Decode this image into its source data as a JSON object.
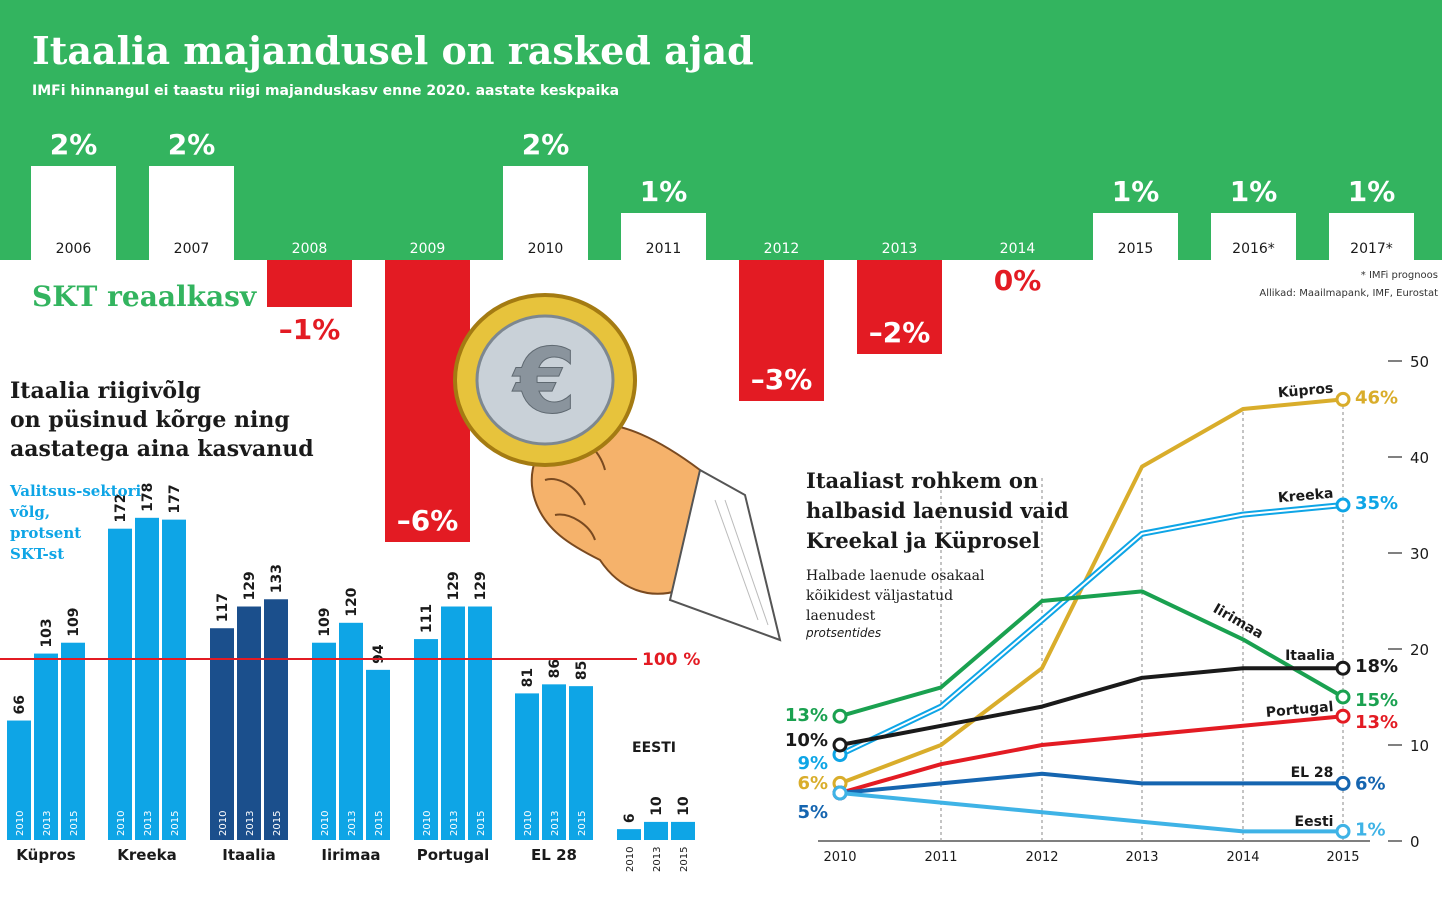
{
  "header": {
    "title": "Itaalia majandusel on rasked ajad",
    "subtitle": "IMFi hinnangul ei taastu riigi majanduskasv enne 2020. aastate keskpaika"
  },
  "colors": {
    "green": "#33b45f",
    "red": "#e31b23",
    "lightblue": "#0ea5e6",
    "darkblue": "#1b4f8c",
    "gold": "#d9ad2b",
    "black": "#1a1a1a",
    "portugal": "#e31b23",
    "eu": "#1565b0",
    "eesti": "#3fb3e6",
    "irl": "#1aa150"
  },
  "chart_data": [
    {
      "type": "bar",
      "title": "SKT reaalkasv",
      "categories": [
        "2006",
        "2007",
        "2008",
        "2009",
        "2010",
        "2011",
        "2012",
        "2013",
        "2014",
        "2015",
        "2016*",
        "2017*"
      ],
      "values": [
        2,
        2,
        -1,
        -6,
        2,
        1,
        -3,
        -2,
        0,
        1,
        1,
        1
      ],
      "labels": [
        "2%",
        "2%",
        "-1%",
        "-6%",
        "2%",
        "1%",
        "-3%",
        "-2%",
        "0%",
        "1%",
        "1%",
        "1%"
      ],
      "footnote": "* IMFi prognoos",
      "source": "Allikad: Maailmapank, IMF, Eurostat"
    },
    {
      "type": "bar",
      "title": "Itaalia riigivõlg on püsinud kõrge ning aastatega aina kasvanud",
      "ylabel": "Valitsus-sektori võlg, protsent SKT-st",
      "reference_line": {
        "value": 100,
        "label": "100 %"
      },
      "years": [
        "2010",
        "2013",
        "2015"
      ],
      "series": [
        {
          "name": "Küpros",
          "values": [
            66,
            103,
            109
          ]
        },
        {
          "name": "Kreeka",
          "values": [
            172,
            178,
            177
          ]
        },
        {
          "name": "Itaalia",
          "values": [
            117,
            129,
            133
          ]
        },
        {
          "name": "Iirimaa",
          "values": [
            109,
            120,
            94
          ]
        },
        {
          "name": "Portugal",
          "values": [
            111,
            129,
            129
          ]
        },
        {
          "name": "EL 28",
          "values": [
            81,
            86,
            85
          ]
        },
        {
          "name": "EESTI",
          "values": [
            6,
            10,
            10
          ]
        }
      ]
    },
    {
      "type": "line",
      "title": "Itaaliast rohkem on halbasid laenusid vaid Kreekal ja Küprosel",
      "subtitle": "Halbade laenude osakaal kõikidest väljastatud laenudest",
      "unit_note": "protsentides",
      "x": [
        "2010",
        "2011",
        "2012",
        "2013",
        "2014",
        "2015"
      ],
      "ylim": [
        0,
        50
      ],
      "yticks": [
        "0",
        "10",
        "20",
        "30",
        "40",
        "50"
      ],
      "series": [
        {
          "name": "Küpros",
          "values": [
            6,
            10,
            18,
            39,
            45,
            46
          ],
          "start_label": "6%",
          "end_label": "46%"
        },
        {
          "name": "Kreeka",
          "values": [
            9,
            14,
            23,
            32,
            34,
            35
          ],
          "start_label": "9%",
          "end_label": "35%"
        },
        {
          "name": "Iirimaa",
          "values": [
            13,
            16,
            25,
            26,
            21,
            15
          ],
          "start_label": "13%",
          "end_label": "15%"
        },
        {
          "name": "Itaalia",
          "values": [
            10,
            12,
            14,
            17,
            18,
            18
          ],
          "start_label": "10%",
          "end_label": "18%"
        },
        {
          "name": "Portugal",
          "values": [
            5,
            8,
            10,
            11,
            12,
            13
          ],
          "start_label": "",
          "end_label": "13%"
        },
        {
          "name": "EL 28",
          "values": [
            5,
            6,
            7,
            6,
            6,
            6
          ],
          "start_label": "5%",
          "end_label": "6%"
        },
        {
          "name": "Eesti",
          "values": [
            5,
            4,
            3,
            2,
            1,
            1
          ],
          "start_label": "",
          "end_label": "1%"
        }
      ]
    }
  ]
}
